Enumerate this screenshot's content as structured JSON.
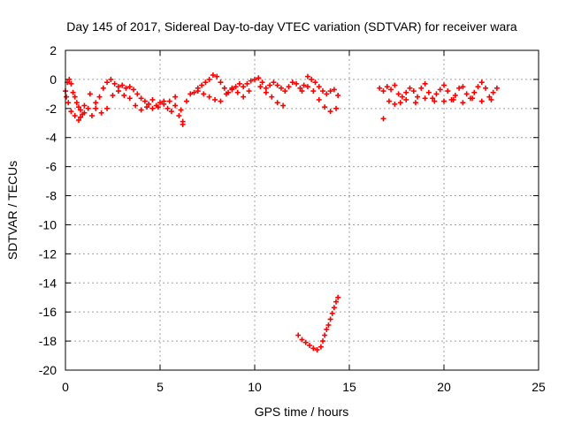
{
  "chart_data": {
    "type": "scatter",
    "title": "Day 145 of 2017, Sidereal Day-to-day VTEC variation (SDTVAR) for receiver wara",
    "xlabel": "GPS time / hours",
    "ylabel": "SDTVAR / TECUs",
    "xlim": [
      0,
      25
    ],
    "ylim": [
      -20,
      2
    ],
    "xticks": [
      0,
      5,
      10,
      15,
      20,
      25
    ],
    "yticks": [
      -20,
      -18,
      -16,
      -14,
      -12,
      -10,
      -8,
      -6,
      -4,
      -2,
      0,
      2
    ],
    "grid": true,
    "marker": "+",
    "series_color": "#ff0000",
    "series": [
      {
        "name": "SDTVAR",
        "x": [
          0.0,
          0.1,
          0.2,
          0.3,
          0.4,
          0.5,
          0.6,
          0.7,
          0.8,
          0.9,
          1.0,
          1.2,
          1.4,
          1.6,
          1.8,
          2.0,
          2.2,
          2.4,
          2.6,
          2.8,
          3.0,
          3.2,
          3.4,
          3.6,
          3.8,
          4.0,
          4.2,
          4.4,
          4.6,
          4.8,
          5.0,
          5.2,
          5.4,
          5.6,
          5.8,
          6.0,
          6.2,
          6.4,
          6.6,
          6.8,
          7.0,
          7.2,
          7.4,
          7.6,
          7.8,
          8.0,
          8.2,
          8.4,
          8.6,
          8.8,
          9.0,
          9.2,
          9.4,
          9.6,
          9.8,
          10.0,
          10.2,
          10.4,
          10.6,
          10.8,
          11.0,
          11.2,
          11.4,
          11.6,
          11.8,
          12.0,
          12.2,
          12.4,
          12.6,
          12.8,
          13.0,
          13.2,
          13.4,
          13.6,
          13.8,
          14.0,
          14.2,
          14.4,
          16.6,
          16.8,
          17.0,
          17.2,
          17.4,
          17.6,
          17.8,
          18.0,
          18.2,
          18.4,
          18.6,
          18.8,
          19.0,
          19.2,
          19.4,
          19.6,
          19.8,
          20.0,
          20.2,
          20.4,
          20.6,
          20.8,
          21.0,
          21.2,
          21.4,
          21.6,
          21.8,
          22.0,
          22.2,
          22.4,
          22.6,
          22.8,
          0.05,
          0.15,
          0.3,
          0.5,
          0.7,
          1.0,
          1.3,
          1.6,
          1.9,
          2.2,
          2.5,
          2.8,
          3.1,
          3.4,
          3.7,
          4.0,
          4.3,
          4.6,
          4.9,
          5.2,
          5.5,
          5.8,
          6.1,
          6.2,
          7.0,
          7.3,
          7.6,
          7.9,
          8.2,
          8.5,
          8.8,
          9.1,
          9.4,
          9.7,
          10.3,
          10.6,
          10.9,
          11.2,
          11.5,
          12.5,
          12.8,
          13.1,
          13.4,
          13.7,
          14.0,
          14.3,
          16.8,
          17.1,
          17.4,
          17.7,
          18.0,
          18.5,
          19.0,
          19.5,
          20.0,
          20.5,
          21.0,
          21.5,
          22.0,
          22.5,
          12.3,
          12.5,
          12.7,
          12.9,
          13.1,
          13.3,
          13.5,
          13.6,
          13.7,
          13.8,
          13.9,
          14.0,
          14.1,
          14.2,
          14.3,
          14.4,
          0.8
        ],
        "y": [
          -0.8,
          -0.2,
          0.0,
          -0.3,
          -0.9,
          -1.2,
          -1.6,
          -1.9,
          -2.1,
          -2.4,
          -2.3,
          -2.0,
          -2.5,
          -2.0,
          -1.2,
          -0.6,
          -0.2,
          0.0,
          -0.3,
          -0.5,
          -0.4,
          -0.6,
          -0.5,
          -0.7,
          -1.0,
          -1.3,
          -1.5,
          -1.7,
          -2.0,
          -1.8,
          -1.6,
          -1.5,
          -2.0,
          -2.2,
          -1.8,
          -2.5,
          -3.1,
          -1.5,
          -1.0,
          -0.9,
          -0.6,
          -0.4,
          -0.2,
          0.0,
          0.3,
          0.2,
          -0.2,
          -0.6,
          -0.9,
          -0.7,
          -0.5,
          -0.3,
          -0.5,
          -0.3,
          -0.1,
          0.0,
          0.1,
          -0.2,
          -0.6,
          -0.4,
          -0.2,
          -0.4,
          -0.6,
          -0.8,
          -0.5,
          -0.2,
          -0.3,
          -0.6,
          -0.4,
          0.2,
          0.0,
          -0.2,
          -0.5,
          -0.8,
          -1.0,
          -0.8,
          -0.7,
          -1.1,
          -0.6,
          -0.8,
          -0.5,
          -0.7,
          -0.4,
          -1.0,
          -1.2,
          -0.9,
          -0.6,
          -0.8,
          -1.2,
          -0.6,
          -0.3,
          -0.9,
          -1.3,
          -1.0,
          -0.7,
          -0.4,
          -0.8,
          -1.4,
          -1.1,
          -0.6,
          -0.5,
          -1.0,
          -1.3,
          -0.9,
          -0.5,
          -0.2,
          -0.6,
          -1.2,
          -0.9,
          -0.6,
          -1.2,
          -1.6,
          -2.2,
          -2.5,
          -2.8,
          -1.8,
          -1.0,
          -1.6,
          -2.3,
          -2.0,
          -1.1,
          -0.8,
          -1.1,
          -1.3,
          -1.8,
          -2.1,
          -1.9,
          -1.4,
          -1.9,
          -1.7,
          -1.5,
          -1.2,
          -2.1,
          -2.9,
          -0.8,
          -1.0,
          -1.2,
          -1.4,
          -1.5,
          -1.0,
          -0.6,
          -0.9,
          -1.2,
          -0.8,
          -0.5,
          -0.9,
          -1.2,
          -1.6,
          -1.8,
          -0.8,
          -0.5,
          -0.8,
          -1.4,
          -1.9,
          -2.2,
          -2.0,
          -2.7,
          -1.5,
          -1.7,
          -1.6,
          -1.4,
          -1.6,
          -1.3,
          -1.5,
          -1.5,
          -1.4,
          -1.6,
          -1.3,
          -1.5,
          -1.4,
          -17.6,
          -17.9,
          -18.1,
          -18.3,
          -18.5,
          -18.6,
          -18.4,
          -18.0,
          -17.6,
          -17.2,
          -16.9,
          -16.5,
          -16.1,
          -15.7,
          -15.3,
          -15.0,
          -2.6
        ]
      }
    ]
  }
}
